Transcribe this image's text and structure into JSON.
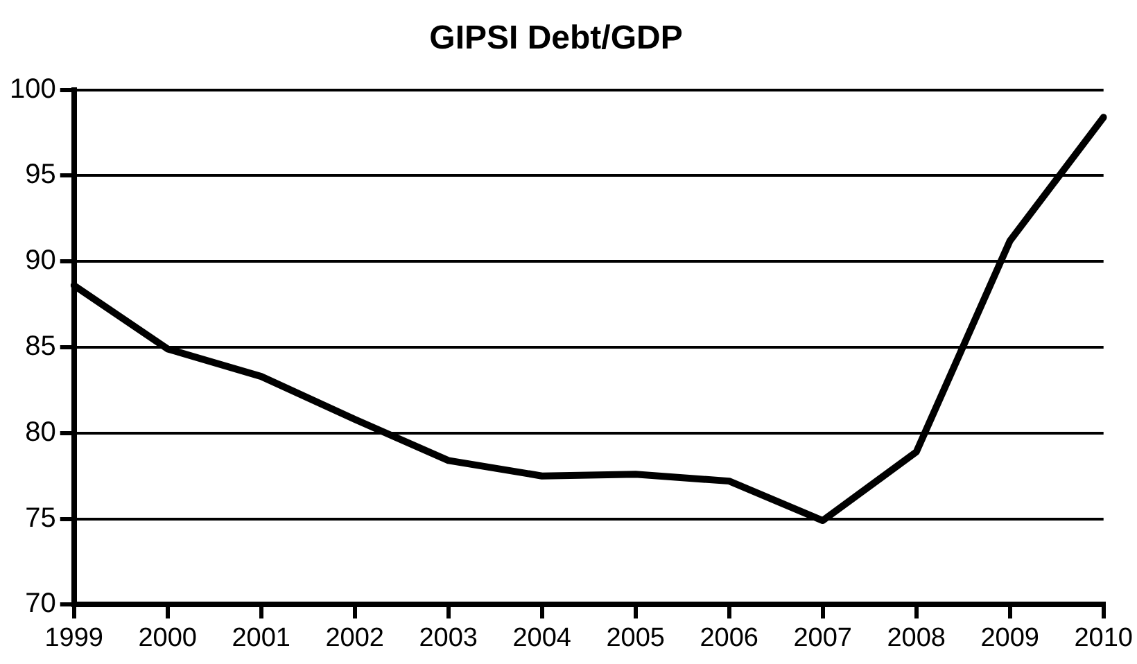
{
  "chart_data": {
    "type": "line",
    "title": "GIPSI Debt/GDP",
    "categories": [
      "1999",
      "2000",
      "2001",
      "2002",
      "2003",
      "2004",
      "2005",
      "2006",
      "2007",
      "2008",
      "2009",
      "2010"
    ],
    "series": [
      {
        "color": "#000000",
        "values": [
          88.6,
          84.9,
          83.3,
          80.8,
          78.4,
          77.5,
          77.6,
          77.2,
          74.9,
          78.9,
          91.2,
          98.4
        ]
      }
    ],
    "ylim": [
      70,
      100
    ],
    "yticks": [
      70,
      75,
      80,
      85,
      90,
      95,
      100
    ],
    "grid": "y",
    "line_style": "solid",
    "marker": "none",
    "legend": false
  }
}
